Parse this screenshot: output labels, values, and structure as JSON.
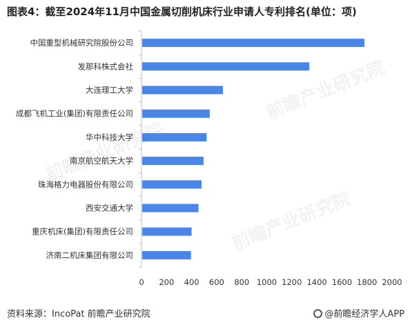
{
  "title": "图表4：截至2024年11月中国金属切削机床行业申请人专利排名(单位：项)",
  "source": "资料来源：IncoPat 前瞻产业研究院",
  "brand": "@前瞻经济学人APP",
  "watermark": "前瞻产业研究院",
  "colors": {
    "bar": "#4a86e8",
    "axis": "#bfbfbf",
    "text": "#333333"
  },
  "chart_data": {
    "type": "bar",
    "orientation": "horizontal",
    "categories": [
      "中国重型机械研究院股份公司",
      "发那科株式会社",
      "大连理工大学",
      "成都飞机工业(集团)有限责任公司",
      "华中科技大学",
      "南京航空航天大学",
      "珠海格力电器股份有限公司",
      "西安交通大学",
      "重庆机床(集团)有限责任公司",
      "济南二机床集团有限公司"
    ],
    "values": [
      1780,
      1340,
      650,
      545,
      520,
      495,
      480,
      455,
      400,
      395
    ],
    "xlim": [
      0,
      2000
    ],
    "xticks": [
      "0",
      "200",
      "400",
      "600",
      "800",
      "1000",
      "1200",
      "1400",
      "1600",
      "1800",
      "2000"
    ],
    "grid": false,
    "legend": "none"
  }
}
